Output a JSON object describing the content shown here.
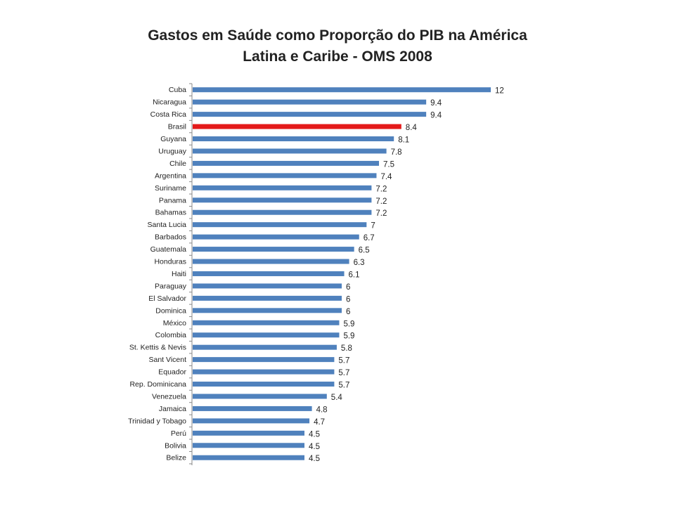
{
  "chart_data": {
    "type": "bar",
    "orientation": "horizontal",
    "title_line1": "Gastos em Saúde como Proporção do PIB na América",
    "title_line2": "Latina e Caribe - OMS 2008",
    "categories": [
      "Cuba",
      "Nicaragua",
      "Costa Rica",
      "Brasil",
      "Guyana",
      "Uruguay",
      "Chile",
      "Argentina",
      "Suriname",
      "Panama",
      "Bahamas",
      "Santa Lucia",
      "Barbados",
      "Guatemala",
      "Honduras",
      "Haiti",
      "Paraguay",
      "El Salvador",
      "Dominica",
      "México",
      "Colombia",
      "St. Kettis & Nevis",
      "Sant Vicent",
      "Equador",
      "Rep. Dominicana",
      "Venezuela",
      "Jamaica",
      "Trinidad y Tobago",
      "Perú",
      "Bolivia",
      "Belize"
    ],
    "values": [
      12,
      9.4,
      9.4,
      8.4,
      8.1,
      7.8,
      7.5,
      7.4,
      7.2,
      7.2,
      7.2,
      7,
      6.7,
      6.5,
      6.3,
      6.1,
      6,
      6,
      6,
      5.9,
      5.9,
      5.8,
      5.7,
      5.7,
      5.7,
      5.4,
      4.8,
      4.7,
      4.5,
      4.5,
      4.5
    ],
    "value_labels": [
      "12",
      "9.4",
      "9.4",
      "8.4",
      "8.1",
      "7.8",
      "7.5",
      "7.4",
      "7.2",
      "7.2",
      "7.2",
      "7",
      "6.7",
      "6.5",
      "6.3",
      "6.1",
      "6",
      "6",
      "6",
      "5.9",
      "5.9",
      "5.8",
      "5.7",
      "5.7",
      "5.7",
      "5.4",
      "4.8",
      "4.7",
      "4.5",
      "4.5",
      "4.5"
    ],
    "highlight_category": "Brasil",
    "bar_color": "#4F81BD",
    "highlight_color": "#E41A1A",
    "xlim": [
      0,
      12
    ],
    "grid": false,
    "legend": "none"
  }
}
